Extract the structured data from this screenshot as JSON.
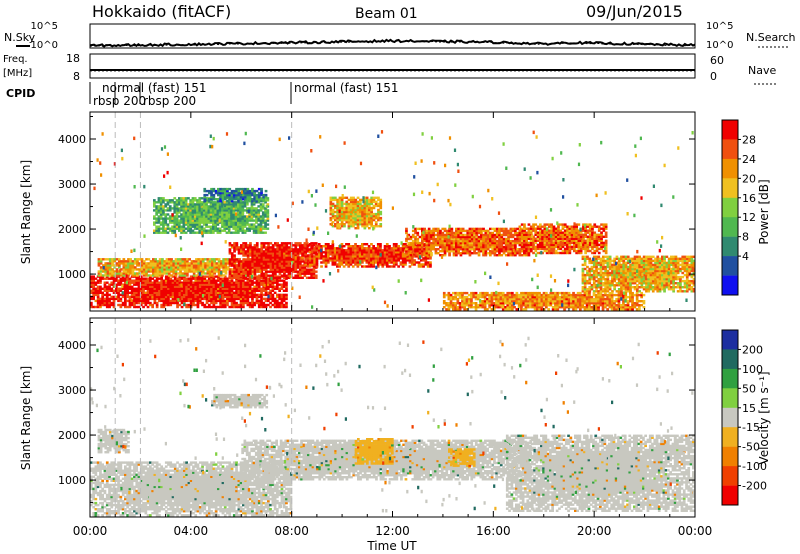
{
  "header": {
    "station": "Hokkaido (fitACF)",
    "beam": "Beam 01",
    "date": "09/Jun/2015"
  },
  "noise_panel": {
    "left_label": "N.Sky",
    "right_label": "N.Search",
    "left_ticks": [
      "10^5",
      "10^0"
    ],
    "right_ticks": [
      "10^5",
      "10^0"
    ]
  },
  "freq_panel": {
    "label_line1": "Freq.",
    "label_line2": "[MHz]",
    "left_ticks": [
      "18",
      "8"
    ],
    "right_ticks": [
      "60",
      "0"
    ],
    "right_label": "Nave"
  },
  "cpid_panel": {
    "label": "CPID",
    "modes": [
      {
        "name": "rbsp 200",
        "start": 1.0,
        "end": 2.0
      },
      {
        "name": "rbsp 200",
        "start": 2.0,
        "end": 8.0
      },
      {
        "name": "normal (fast) 151",
        "start": 0.0,
        "end": 1.0
      },
      {
        "name": "normal (fast) 151",
        "start": 8.0,
        "end": 24.0
      }
    ],
    "labels": {
      "rbsp_a": "rbsp 200",
      "rbsp_b": "rbsp 200",
      "normal_a": "normal (fast) 151",
      "normal_b": "normal (fast) 151"
    }
  },
  "power_panel": {
    "ylabel": "Slant Range [km]",
    "yticks": [
      "4000",
      "3000",
      "2000",
      "1000"
    ],
    "colorbar_label": "Power [dB]",
    "colorbar_ticks": [
      "28",
      "24",
      "20",
      "16",
      "12",
      "8",
      "4"
    ],
    "colors": [
      "#1010f0",
      "#2050a0",
      "#308a70",
      "#50b850",
      "#80d040",
      "#f0c020",
      "#f09000",
      "#f05010",
      "#f00000"
    ]
  },
  "velocity_panel": {
    "ylabel": "Slant Range [km]",
    "yticks": [
      "4000",
      "3000",
      "2000",
      "1000"
    ],
    "colorbar_label": "Velocity [m s⁻¹]",
    "colorbar_ticks": [
      "200",
      "100",
      "50",
      "15",
      "-15",
      "-50",
      "-100",
      "-200"
    ],
    "colors": [
      "#1c2ea0",
      "#206a60",
      "#30a040",
      "#80d040",
      "#c8c8c0",
      "#f0b020",
      "#f08000",
      "#f04000",
      "#f00000"
    ]
  },
  "xaxis": {
    "label": "Time UT",
    "ticks": [
      "00:00",
      "04:00",
      "08:00",
      "12:00",
      "16:00",
      "20:00",
      "00:00"
    ]
  },
  "chart_data": {
    "type": "heatmap",
    "title": "Hokkaido (fitACF)   Beam 01   09/Jun/2015",
    "xlabel": "Time UT",
    "ylabel": "Slant Range [km]",
    "xlim": [
      0,
      24
    ],
    "ylim": [
      180,
      4600
    ],
    "x_unit": "hours UT",
    "power_regions": [
      {
        "t0": 0.0,
        "t1": 7.8,
        "r0": 250,
        "r1": 950,
        "value": 28
      },
      {
        "t0": 0.3,
        "t1": 6.5,
        "r0": 950,
        "r1": 1350,
        "value": 20
      },
      {
        "t0": 5.5,
        "t1": 9.0,
        "r0": 900,
        "r1": 1700,
        "value": 28
      },
      {
        "t0": 8.5,
        "t1": 13.5,
        "r0": 1150,
        "r1": 1650,
        "value": 26
      },
      {
        "t0": 12.5,
        "t1": 17.5,
        "r0": 1400,
        "r1": 2000,
        "value": 24
      },
      {
        "t0": 17.0,
        "t1": 20.5,
        "r0": 1450,
        "r1": 2100,
        "value": 24
      },
      {
        "t0": 19.5,
        "t1": 24.0,
        "r0": 600,
        "r1": 1400,
        "value": 20
      },
      {
        "t0": 14.0,
        "t1": 22.0,
        "r0": 200,
        "r1": 600,
        "value": 22
      },
      {
        "t0": 2.5,
        "t1": 7.0,
        "r0": 1900,
        "r1": 2700,
        "value": 12
      },
      {
        "t0": 4.5,
        "t1": 7.0,
        "r0": 2600,
        "r1": 2900,
        "value": 8
      },
      {
        "t0": 9.5,
        "t1": 11.5,
        "r0": 2000,
        "r1": 2700,
        "value": 20
      }
    ],
    "velocity_regions": [
      {
        "t0": 0.0,
        "t1": 8.0,
        "r0": 200,
        "r1": 1400,
        "value": 0
      },
      {
        "t0": 6.0,
        "t1": 17.5,
        "r0": 1000,
        "r1": 1900,
        "value": 0
      },
      {
        "t0": 16.5,
        "t1": 24.0,
        "r0": 300,
        "r1": 2000,
        "value": 0
      },
      {
        "t0": 10.5,
        "t1": 12.0,
        "r0": 1350,
        "r1": 1900,
        "value": -40
      },
      {
        "t0": 14.2,
        "t1": 15.2,
        "r0": 1300,
        "r1": 1700,
        "value": -40
      },
      {
        "t0": 0.3,
        "t1": 1.5,
        "r0": 1600,
        "r1": 2100,
        "value": 0
      },
      {
        "t0": 4.8,
        "t1": 7.0,
        "r0": 2600,
        "r1": 2900,
        "value": 0
      }
    ],
    "noise": {
      "n_sky": [
        [
          0,
          0.3
        ],
        [
          4,
          0.6
        ],
        [
          8,
          1.0
        ],
        [
          12,
          1.4
        ],
        [
          16,
          1.1
        ],
        [
          18,
          0.7
        ],
        [
          19,
          1.0
        ],
        [
          24,
          0.4
        ]
      ],
      "n_search": [
        [
          0,
          0.2
        ],
        [
          4,
          0.5
        ],
        [
          8,
          0.9
        ],
        [
          12,
          1.3
        ],
        [
          16,
          1.0
        ],
        [
          18,
          0.6
        ],
        [
          19,
          0.9
        ],
        [
          24,
          0.3
        ]
      ]
    },
    "frequency_mhz": 10.5,
    "nave": 18
  }
}
